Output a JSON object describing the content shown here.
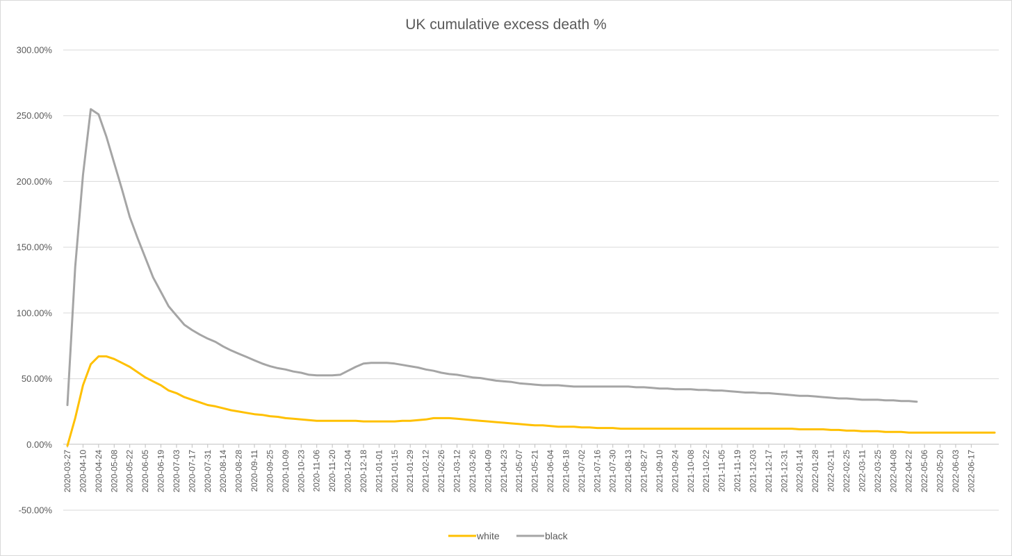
{
  "chart_data": {
    "type": "line",
    "title": "UK cumulative excess death %",
    "xlabel": "",
    "ylabel": "",
    "ylim": [
      -50,
      300
    ],
    "y_ticks": [
      300,
      250,
      200,
      150,
      100,
      50,
      0,
      -50
    ],
    "y_tick_labels": [
      "300.00%",
      "250.00%",
      "200.00%",
      "150.00%",
      "100.00%",
      "50.00%",
      "0.00%",
      "-50.00%"
    ],
    "x_tick_labels": [
      "2020-03-27",
      "2020-04-10",
      "2020-04-24",
      "2020-05-08",
      "2020-05-22",
      "2020-06-05",
      "2020-06-19",
      "2020-07-03",
      "2020-07-17",
      "2020-07-31",
      "2020-08-14",
      "2020-08-28",
      "2020-09-11",
      "2020-09-25",
      "2020-10-09",
      "2020-10-23",
      "2020-11-06",
      "2020-11-20",
      "2020-12-04",
      "2020-12-18",
      "2021-01-01",
      "2021-01-15",
      "2021-01-29",
      "2021-02-12",
      "2021-02-26",
      "2021-03-12",
      "2021-03-26",
      "2021-04-09",
      "2021-04-23",
      "2021-05-07",
      "2021-05-21",
      "2021-06-04",
      "2021-06-18",
      "2021-07-02",
      "2021-07-16",
      "2021-07-30",
      "2021-08-13",
      "2021-08-27",
      "2021-09-10",
      "2021-09-24",
      "2021-10-08",
      "2021-10-22",
      "2021-11-05",
      "2021-11-19",
      "2021-12-03",
      "2021-12-17",
      "2021-12-31",
      "2022-01-14",
      "2022-01-28",
      "2022-02-11",
      "2022-02-25",
      "2022-03-11",
      "2022-03-25",
      "2022-04-08",
      "2022-04-22",
      "2022-05-06",
      "2022-05-20",
      "2022-06-03",
      "2022-06-17"
    ],
    "tick_step_weeks": 2,
    "legend_position": "bottom",
    "grid": true,
    "series": [
      {
        "name": "white",
        "color": "#FFC000",
        "values": [
          -1,
          20,
          45,
          61,
          67,
          67,
          65,
          62,
          59,
          55,
          51,
          48,
          45,
          41,
          39,
          36,
          34,
          32,
          30,
          29,
          27.5,
          26,
          25,
          24,
          23,
          22.5,
          21.5,
          21,
          20,
          19.5,
          19,
          18.5,
          18,
          18,
          18,
          18,
          18,
          18,
          17.5,
          17.5,
          17.5,
          17.5,
          17.5,
          18,
          18,
          18.5,
          19,
          20,
          20,
          20,
          19.5,
          19,
          18.5,
          18,
          17.5,
          17,
          16.5,
          16,
          15.5,
          15,
          14.5,
          14.5,
          14,
          13.5,
          13.5,
          13.5,
          13,
          13,
          12.5,
          12.5,
          12.5,
          12,
          12,
          12,
          12,
          12,
          12,
          12,
          12,
          12,
          12,
          12,
          12,
          12,
          12,
          12,
          12,
          12,
          12,
          12,
          12,
          12,
          12,
          12,
          11.5,
          11.5,
          11.5,
          11.5,
          11,
          11,
          10.5,
          10.5,
          10,
          10,
          10,
          9.5,
          9.5,
          9.5,
          9,
          9,
          9,
          9,
          9,
          9,
          9,
          9,
          9,
          9,
          9,
          9
        ]
      },
      {
        "name": "black",
        "color": "#A5A5A5",
        "values": [
          30,
          135,
          205,
          255,
          251,
          234,
          214,
          194,
          173,
          157,
          142,
          127,
          116,
          105,
          98,
          91,
          87,
          83.5,
          80.5,
          78,
          74.5,
          71.5,
          69,
          66.5,
          64,
          61.5,
          59.5,
          58,
          57,
          55.5,
          54.5,
          53,
          52.5,
          52.5,
          52.5,
          53,
          56,
          59,
          61.5,
          62,
          62,
          62,
          61.5,
          60.5,
          59.5,
          58.5,
          57,
          56,
          54.5,
          53.5,
          53,
          52,
          51,
          50.5,
          49.5,
          48.5,
          48,
          47.5,
          46.5,
          46,
          45.5,
          45,
          45,
          45,
          44.5,
          44,
          44,
          44,
          44,
          44,
          44,
          44,
          44,
          43.5,
          43.5,
          43,
          42.5,
          42.5,
          42,
          42,
          42,
          41.5,
          41.5,
          41,
          41,
          40.5,
          40,
          39.5,
          39.5,
          39,
          39,
          38.5,
          38,
          37.5,
          37,
          37,
          36.5,
          36,
          35.5,
          35,
          35,
          34.5,
          34,
          34,
          34,
          33.5,
          33.5,
          33,
          33,
          32.5
        ]
      }
    ]
  }
}
